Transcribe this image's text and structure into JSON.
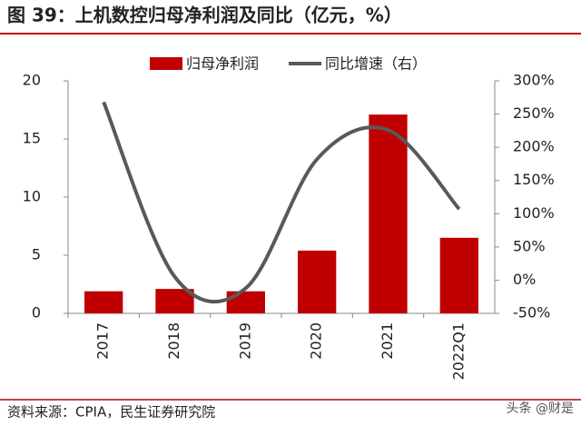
{
  "chart_data": {
    "type": "bar-line",
    "title": "图 39：上机数控归母净利润及同比（亿元，%）",
    "categories": [
      "2017",
      "2018",
      "2019",
      "2020",
      "2021",
      "2022Q1"
    ],
    "series": [
      {
        "name": "归母净利润",
        "type": "bar",
        "color": "#c00000",
        "values": [
          1.9,
          2.1,
          1.9,
          5.4,
          17.1,
          6.5
        ]
      },
      {
        "name": "同比增速（右）",
        "type": "line",
        "axis": "y2",
        "color": "#595959",
        "values": [
          268,
          5,
          -12,
          182,
          226,
          107
        ]
      }
    ],
    "ylim": [
      0,
      20
    ],
    "yticks": [
      0,
      5,
      10,
      15,
      20
    ],
    "y2lim": [
      -50,
      300
    ],
    "y2ticks": [
      {
        "value": -50,
        "label": "-50%"
      },
      {
        "value": 0,
        "label": "0%"
      },
      {
        "value": 50,
        "label": "50%"
      },
      {
        "value": 100,
        "label": "100%"
      },
      {
        "value": 150,
        "label": "150%"
      },
      {
        "value": 200,
        "label": "200%"
      },
      {
        "value": 250,
        "label": "250%"
      },
      {
        "value": 300,
        "label": "300%"
      }
    ],
    "legend": "top",
    "source": "资料来源：CPIA，民生证券研究院",
    "watermark": "头条 @财是"
  }
}
